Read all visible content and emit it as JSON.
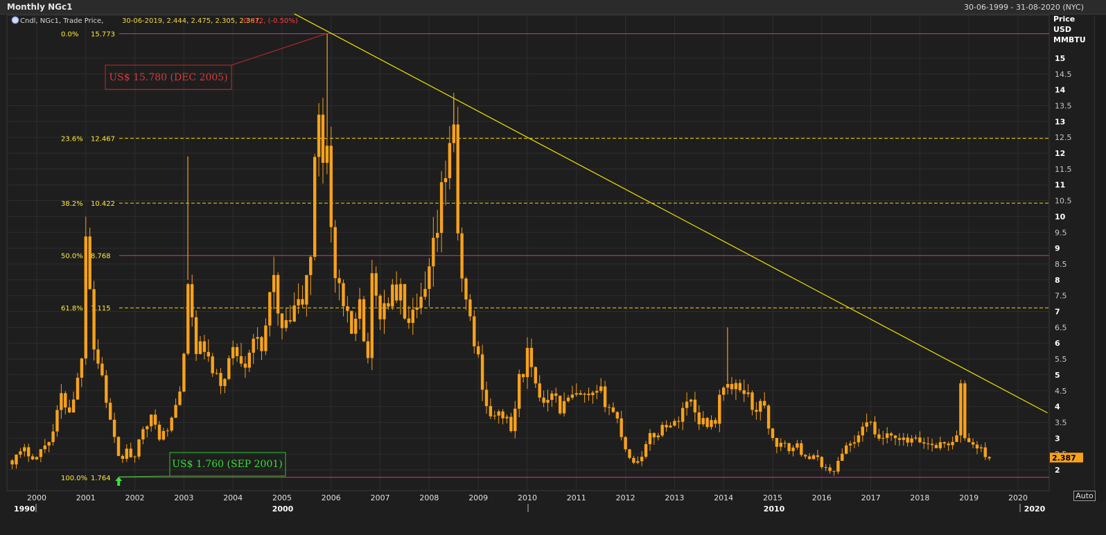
{
  "window": {
    "title": "Monthly NGc1",
    "date_range": "30-06-1999 - 31-08-2020 (NYC)"
  },
  "legend": {
    "prefix": "Cndl, NGc1, Trade Price,",
    "values": "30-06-2019, 2.444, 2.475, 2.305, 2.387,",
    "change": "-0.012, (-0.50%)"
  },
  "axis": {
    "y_title_lines": [
      "Price",
      "USD",
      "MMBTU"
    ],
    "last_price": "2.387",
    "auto_label": "Auto",
    "decade_labels": [
      "1990",
      "2000",
      "2010",
      "2020"
    ]
  },
  "colors": {
    "background": "#1e1e1e",
    "candle": "#f7a21b",
    "fib_line": "#ffd700",
    "level_line": "#e0308a",
    "trend_line": "#f2e600",
    "callout_high": "#c42a2a",
    "callout_low": "#28c828",
    "label_text": "#ffeb3b"
  },
  "annotations": {
    "high_callout": "US$ 15.780 (DEC 2005)",
    "low_callout": "US$ 1.760 (SEP 2001)"
  },
  "chart_data": {
    "type": "candlestick",
    "title": "Monthly NGc1",
    "ylabel": "Price USD MMBTU",
    "ylim": [
      1.55,
      16.55
    ],
    "xlim": [
      1999.5,
      2020.67
    ],
    "y_ticks": [
      2,
      2.5,
      3,
      3.5,
      4,
      4.5,
      5,
      5.5,
      6,
      6.5,
      7,
      7.5,
      8,
      8.5,
      9,
      9.5,
      10,
      10.5,
      11,
      11.5,
      12,
      12.5,
      13,
      13.5,
      14,
      14.5,
      15
    ],
    "x_ticks": [
      "2000",
      "2001",
      "2002",
      "2003",
      "2004",
      "2005",
      "2006",
      "2007",
      "2008",
      "2009",
      "2010",
      "2011",
      "2012",
      "2013",
      "2014",
      "2015",
      "2016",
      "2017",
      "2018",
      "2019",
      "2020"
    ],
    "fib_levels": [
      {
        "pct": "0.0%",
        "value": 15.773,
        "label": "15.773",
        "style": "solid"
      },
      {
        "pct": "23.6%",
        "value": 12.467,
        "label": "12.467",
        "style": "dashed"
      },
      {
        "pct": "38.2%",
        "value": 10.422,
        "label": "10.422",
        "style": "dashed"
      },
      {
        "pct": "50.0%",
        "value": 8.768,
        "label": "8.768",
        "style": "solid"
      },
      {
        "pct": "61.8%",
        "value": 7.115,
        "label": "7.115",
        "style": "dashed"
      },
      {
        "pct": "100.0%",
        "value": 1.764,
        "label": "1.764",
        "style": "solid"
      }
    ],
    "trendline": {
      "x1": 2005.25,
      "y1": 16.4,
      "x2": 2020.6,
      "y2": 3.8
    },
    "high_point": {
      "x": 2005.92,
      "y": 15.78
    },
    "low_point": {
      "x": 2001.67,
      "y": 1.76
    },
    "anchors": [
      [
        1999.5,
        2.3
      ],
      [
        1999.75,
        2.6
      ],
      [
        2000.0,
        2.4
      ],
      [
        2000.33,
        3.2
      ],
      [
        2000.5,
        4.3
      ],
      [
        2000.67,
        3.9
      ],
      [
        2000.83,
        4.8
      ],
      [
        2000.92,
        5.8
      ],
      [
        2001.0,
        9.8
      ],
      [
        2001.08,
        8.0
      ],
      [
        2001.17,
        5.8
      ],
      [
        2001.33,
        5.0
      ],
      [
        2001.5,
        3.5
      ],
      [
        2001.67,
        2.3
      ],
      [
        2001.83,
        2.6
      ],
      [
        2002.0,
        2.3
      ],
      [
        2002.17,
        3.5
      ],
      [
        2002.33,
        3.6
      ],
      [
        2002.5,
        3.1
      ],
      [
        2002.67,
        3.2
      ],
      [
        2002.83,
        4.0
      ],
      [
        2003.0,
        5.4
      ],
      [
        2003.08,
        8.0
      ],
      [
        2003.25,
        5.6
      ],
      [
        2003.42,
        5.9
      ],
      [
        2003.58,
        5.0
      ],
      [
        2003.75,
        4.7
      ],
      [
        2004.0,
        5.8
      ],
      [
        2004.25,
        5.5
      ],
      [
        2004.42,
        6.3
      ],
      [
        2004.58,
        5.5
      ],
      [
        2004.75,
        7.5
      ],
      [
        2004.83,
        8.5
      ],
      [
        2004.92,
        6.6
      ],
      [
        2005.08,
        6.4
      ],
      [
        2005.25,
        7.0
      ],
      [
        2005.42,
        7.3
      ],
      [
        2005.58,
        8.8
      ],
      [
        2005.67,
        11.5
      ],
      [
        2005.75,
        13.5
      ],
      [
        2005.83,
        11.8
      ],
      [
        2005.92,
        12.8
      ],
      [
        2006.0,
        9.5
      ],
      [
        2006.08,
        8.0
      ],
      [
        2006.25,
        7.0
      ],
      [
        2006.42,
        6.3
      ],
      [
        2006.58,
        7.8
      ],
      [
        2006.67,
        6.0
      ],
      [
        2006.75,
        5.8
      ],
      [
        2006.83,
        7.8
      ],
      [
        2007.0,
        7.0
      ],
      [
        2007.25,
        7.6
      ],
      [
        2007.42,
        7.5
      ],
      [
        2007.58,
        6.5
      ],
      [
        2007.75,
        6.9
      ],
      [
        2007.92,
        7.5
      ],
      [
        2008.0,
        8.1
      ],
      [
        2008.17,
        9.6
      ],
      [
        2008.33,
        11.5
      ],
      [
        2008.5,
        13.2
      ],
      [
        2008.58,
        9.0
      ],
      [
        2008.75,
        7.3
      ],
      [
        2008.92,
        6.0
      ],
      [
        2009.0,
        5.5
      ],
      [
        2009.17,
        4.0
      ],
      [
        2009.33,
        3.6
      ],
      [
        2009.5,
        3.8
      ],
      [
        2009.67,
        3.2
      ],
      [
        2009.83,
        4.8
      ],
      [
        2010.0,
        5.6
      ],
      [
        2010.17,
        4.5
      ],
      [
        2010.33,
        4.2
      ],
      [
        2010.5,
        4.6
      ],
      [
        2010.67,
        3.9
      ],
      [
        2010.83,
        4.2
      ],
      [
        2011.0,
        4.3
      ],
      [
        2011.25,
        4.2
      ],
      [
        2011.5,
        4.4
      ],
      [
        2011.67,
        4.0
      ],
      [
        2011.83,
        3.6
      ],
      [
        2012.0,
        2.7
      ],
      [
        2012.17,
        2.2
      ],
      [
        2012.33,
        2.5
      ],
      [
        2012.5,
        3.0
      ],
      [
        2012.67,
        3.2
      ],
      [
        2012.83,
        3.5
      ],
      [
        2013.0,
        3.4
      ],
      [
        2013.17,
        4.0
      ],
      [
        2013.33,
        4.2
      ],
      [
        2013.5,
        3.6
      ],
      [
        2013.67,
        3.5
      ],
      [
        2013.83,
        3.6
      ],
      [
        2013.92,
        4.2
      ],
      [
        2014.0,
        4.8
      ],
      [
        2014.17,
        4.5
      ],
      [
        2014.42,
        4.6
      ],
      [
        2014.58,
        4.0
      ],
      [
        2014.83,
        4.0
      ],
      [
        2015.0,
        2.9
      ],
      [
        2015.25,
        2.7
      ],
      [
        2015.5,
        2.7
      ],
      [
        2015.75,
        2.4
      ],
      [
        2015.92,
        2.3
      ],
      [
        2016.0,
        2.2
      ],
      [
        2016.17,
        1.9
      ],
      [
        2016.33,
        2.2
      ],
      [
        2016.5,
        2.8
      ],
      [
        2016.67,
        2.9
      ],
      [
        2016.83,
        3.2
      ],
      [
        2016.92,
        3.7
      ],
      [
        2017.08,
        3.0
      ],
      [
        2017.33,
        3.0
      ],
      [
        2017.58,
        2.9
      ],
      [
        2017.83,
        2.9
      ],
      [
        2018.0,
        2.9
      ],
      [
        2018.25,
        2.8
      ],
      [
        2018.5,
        2.8
      ],
      [
        2018.75,
        3.0
      ],
      [
        2018.83,
        4.6
      ],
      [
        2018.92,
        3.0
      ],
      [
        2019.08,
        2.8
      ],
      [
        2019.25,
        2.6
      ],
      [
        2019.42,
        2.39
      ]
    ]
  }
}
